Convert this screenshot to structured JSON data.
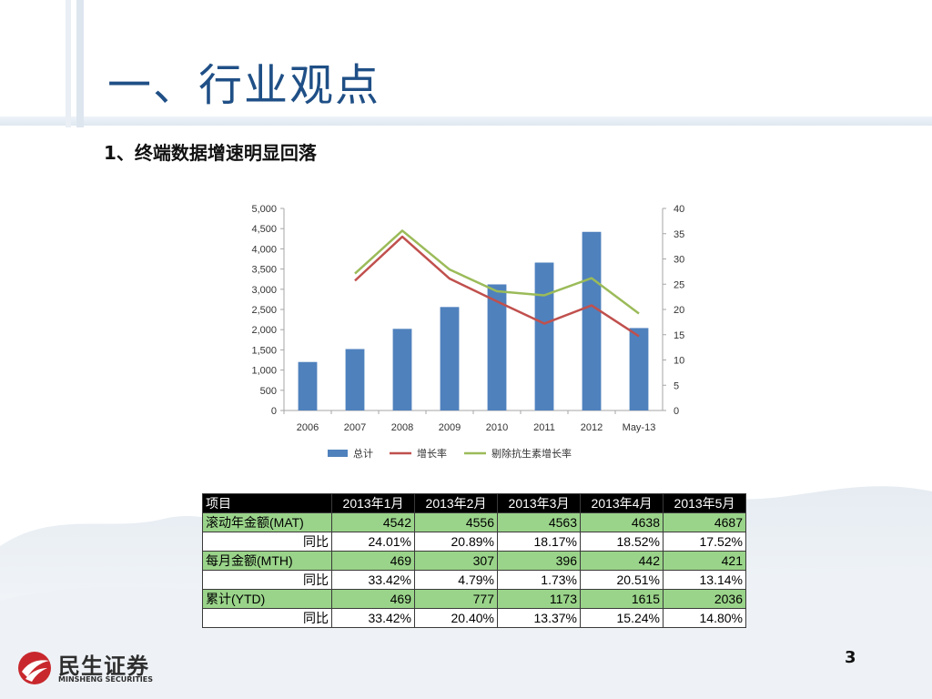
{
  "slide": {
    "title": "一、行业观点",
    "subtitle": "1、终端数据增速明显回落",
    "page_number": "3"
  },
  "logo": {
    "name_cn": "民生证券",
    "name_en": "MINSHENG SECURITIES",
    "icon": "minsheng-swoosh-logo",
    "color": "#c8282d"
  },
  "chart_data": {
    "type": "bar",
    "categories": [
      "2006",
      "2007",
      "2008",
      "2009",
      "2010",
      "2011",
      "2012",
      "May-13"
    ],
    "series": [
      {
        "name": "总计",
        "type": "bar",
        "axis": "left",
        "color": "#4f81bd",
        "values": [
          1200,
          1520,
          2020,
          2560,
          3120,
          3660,
          4420,
          2040
        ]
      },
      {
        "name": "增长率",
        "type": "line",
        "axis": "right",
        "color": "#c0504d",
        "values": [
          null,
          25.7,
          34.4,
          26.1,
          21.6,
          17.2,
          20.8,
          14.7
        ]
      },
      {
        "name": "剔除抗生素增长率",
        "type": "line",
        "axis": "right",
        "color": "#9bbb59",
        "values": [
          null,
          27.1,
          35.6,
          27.9,
          23.6,
          22.8,
          26.2,
          19.2
        ]
      }
    ],
    "ylim": [
      0,
      5000
    ],
    "y_ticks": [
      "0",
      "500",
      "1,000",
      "1,500",
      "2,000",
      "2,500",
      "3,000",
      "3,500",
      "4,000",
      "4,500",
      "5,000"
    ],
    "y2lim": [
      0,
      40
    ],
    "y2_ticks": [
      "0",
      "5",
      "10",
      "15",
      "20",
      "25",
      "30",
      "35",
      "40"
    ],
    "grid": false,
    "legend": "bottom"
  },
  "table": {
    "headers": [
      "项目",
      "2013年1月",
      "2013年2月",
      "2013年3月",
      "2013年4月",
      "2013年5月"
    ],
    "rows": [
      {
        "label": "滚动年金额(MAT)",
        "values": [
          "4542",
          "4556",
          "4563",
          "4638",
          "4687"
        ]
      },
      {
        "label": "同比",
        "values": [
          "24.01%",
          "20.89%",
          "18.17%",
          "18.52%",
          "17.52%"
        ]
      },
      {
        "label": "每月金额(MTH)",
        "values": [
          "469",
          "307",
          "396",
          "442",
          "421"
        ]
      },
      {
        "label": "同比",
        "values": [
          "33.42%",
          "4.79%",
          "1.73%",
          "20.51%",
          "13.14%"
        ]
      },
      {
        "label": "累计(YTD)",
        "values": [
          "469",
          "777",
          "1173",
          "1615",
          "2036"
        ]
      },
      {
        "label": "同比",
        "values": [
          "33.42%",
          "20.40%",
          "13.37%",
          "15.24%",
          "14.80%"
        ]
      }
    ]
  }
}
